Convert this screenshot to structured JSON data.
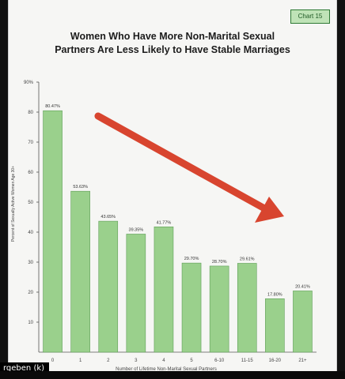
{
  "badge": "Chart 15",
  "title_lines": [
    "Women Who Have More Non-Marital Sexual",
    "Partners Are Less Likely to Have Stable Marriages"
  ],
  "caption": "rgeben (k)",
  "colors": {
    "bar": "#9ad08c",
    "bar_stroke": "#5f9e57",
    "arrow": "#d8452f",
    "badge_bg": "#bfe3b7"
  },
  "chart_data": {
    "type": "bar",
    "title": "Women Who Have More Non-Marital Sexual Partners Are Less Likely to Have Stable Marriages",
    "xlabel": "Number of Lifetime Non-Marital Sexual Partners",
    "ylabel": "Percent of Sexually Active Women Age 30+",
    "ylim": [
      0,
      90
    ],
    "y_ticks": [
      10,
      20,
      30,
      40,
      50,
      60,
      70,
      80,
      90
    ],
    "y_tick_labels": [
      "10",
      "20",
      "30",
      "40",
      "50",
      "60",
      "70",
      "80",
      "90%"
    ],
    "grid": false,
    "categories": [
      "0",
      "1",
      "2",
      "3",
      "4",
      "5",
      "6-10",
      "11-15",
      "16-20",
      "21+"
    ],
    "values": [
      80.47,
      53.63,
      43.65,
      39.35,
      41.77,
      29.7,
      28.7,
      29.61,
      17.8,
      20.41
    ],
    "data_labels": [
      "80.47%",
      "53.63%",
      "43.65%",
      "39.35%",
      "41.77%",
      "29.70%",
      "28.70%",
      "29.61%",
      "17.80%",
      "20.41%"
    ],
    "annotation": "downward-trend-arrow"
  }
}
